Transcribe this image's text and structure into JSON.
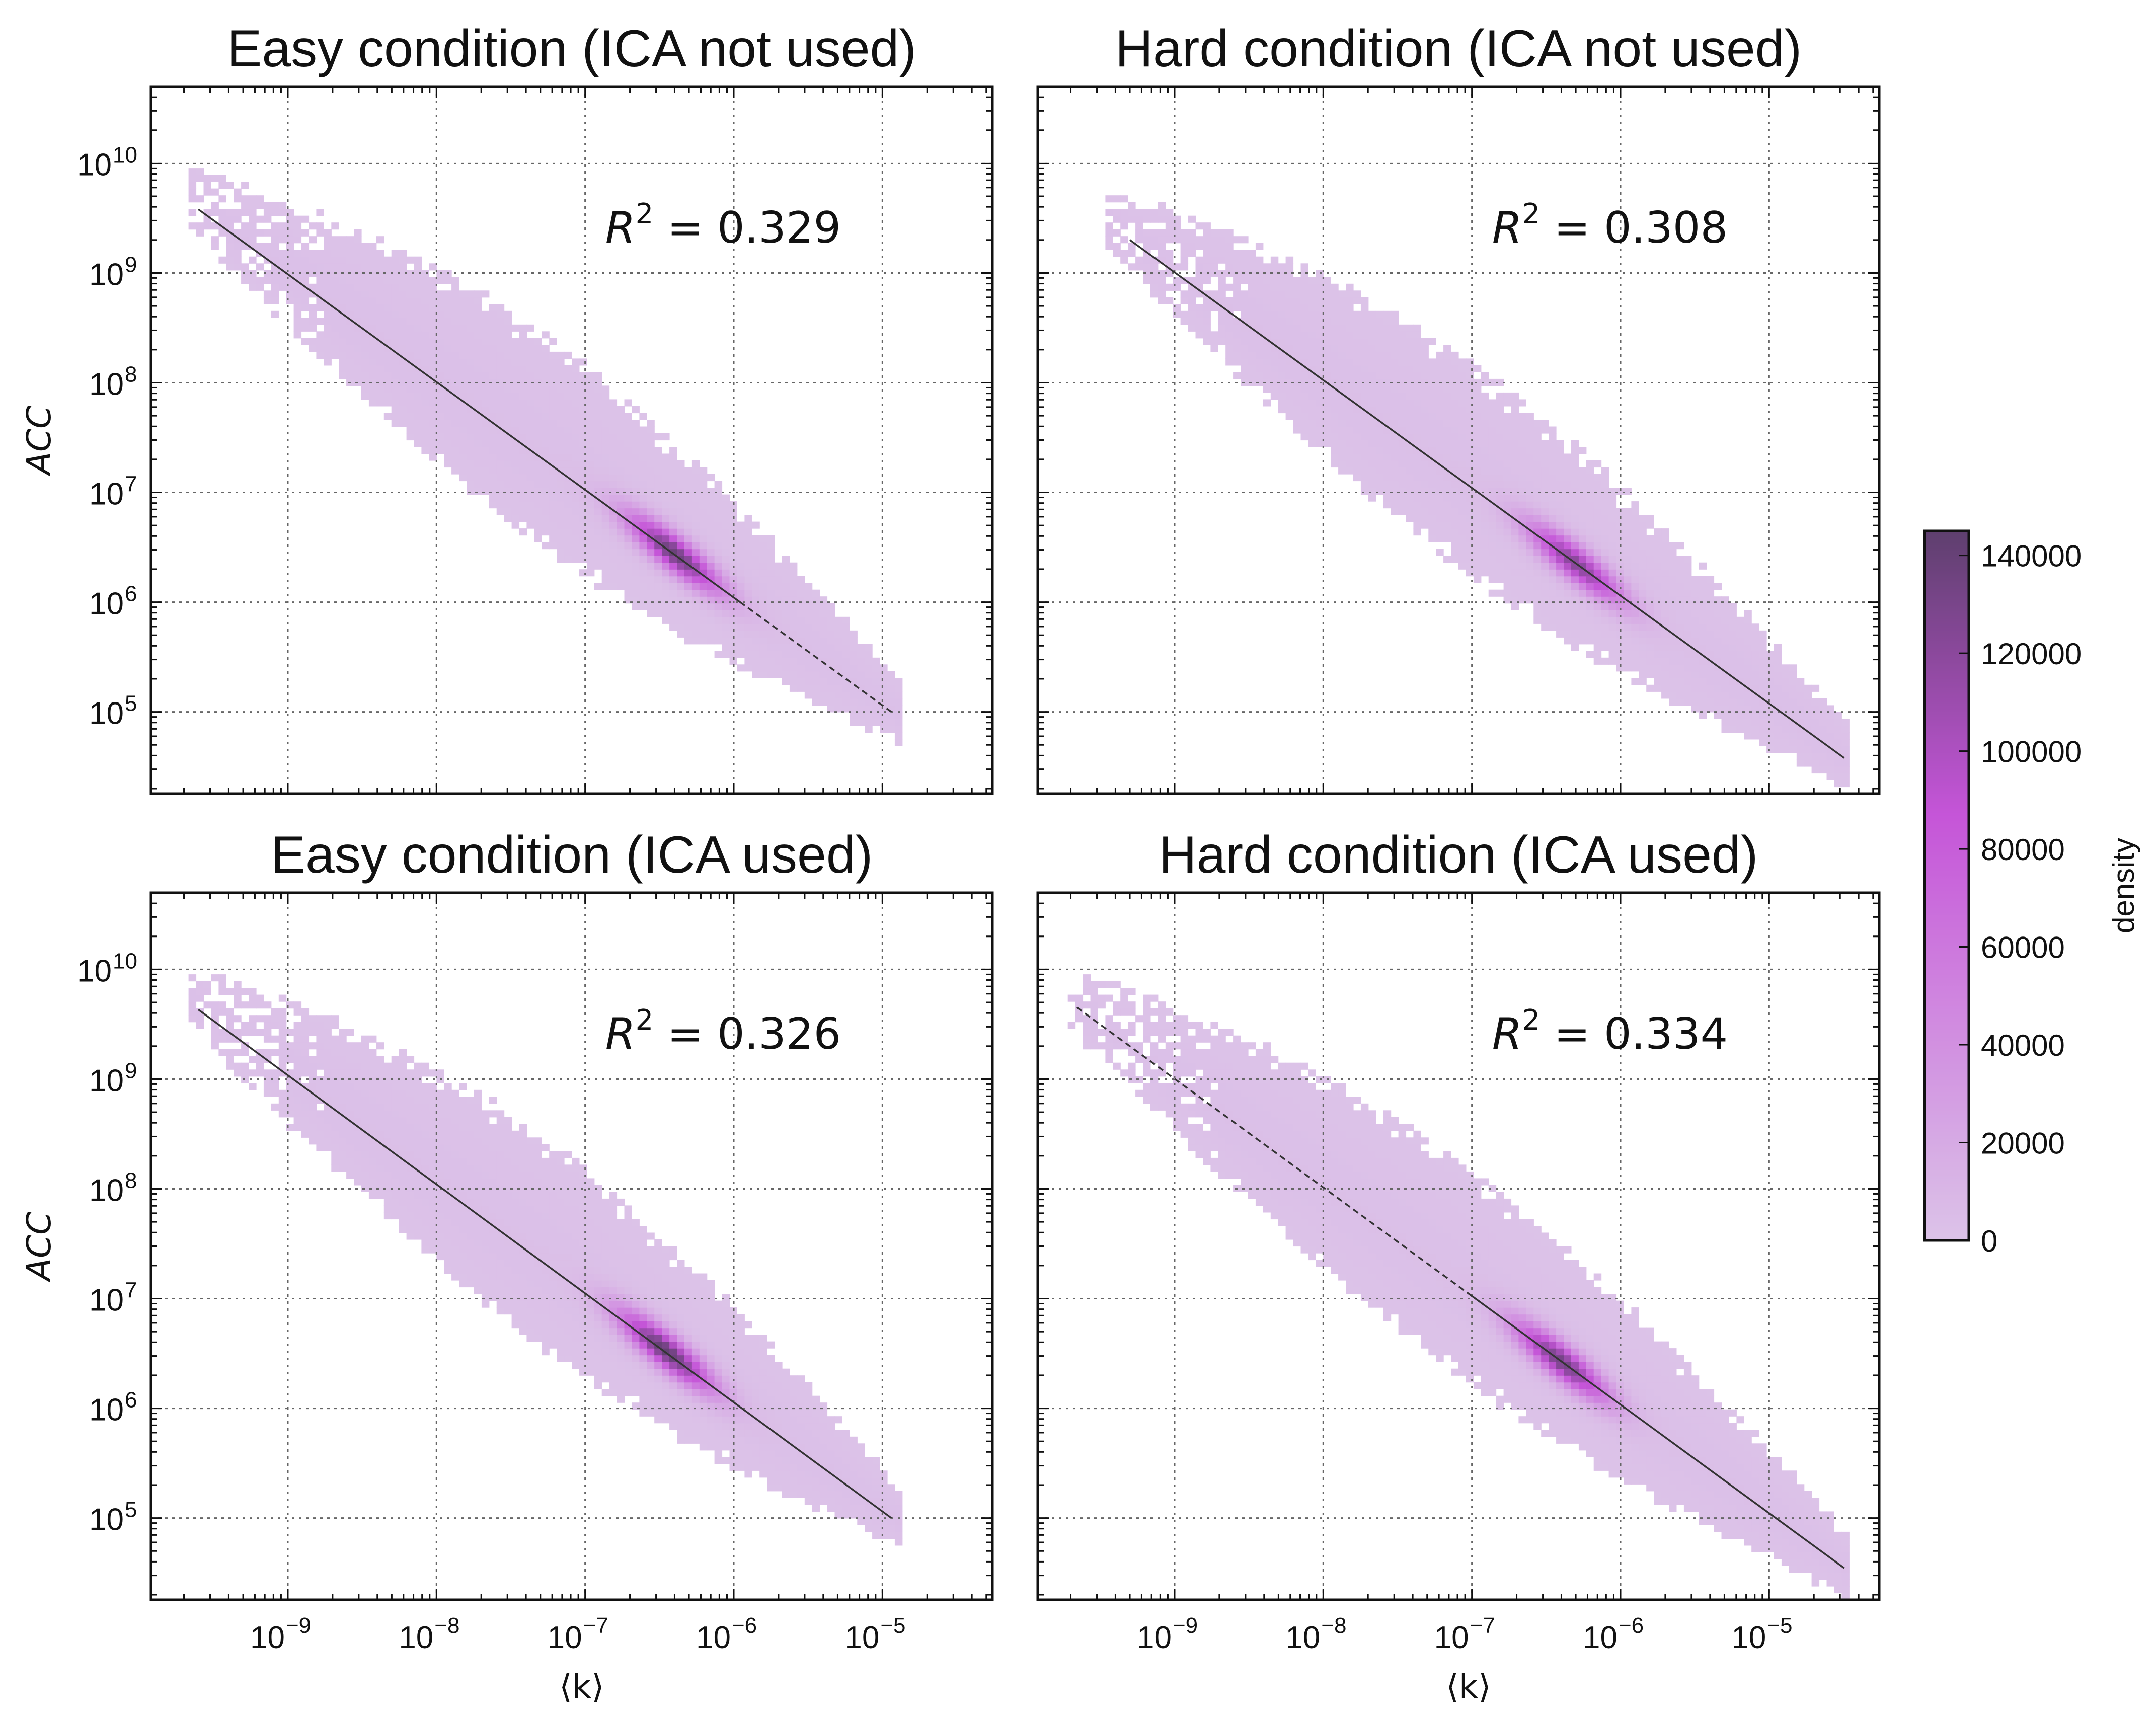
{
  "chart_data": [
    {
      "type": "heatmap",
      "title": "Easy condition (ICA not used)",
      "xlabel": "",
      "ylabel": "ACC",
      "xscale": "log",
      "yscale": "log",
      "xlim": [
        1.2e-10,
        5.5e-05
      ],
      "ylim": [
        18000.0,
        50000000000.0
      ],
      "x_tick_values": [
        1e-09,
        1e-08,
        1e-07,
        1e-06,
        1e-05
      ],
      "x_tick_labels": [
        "",
        "",
        "",
        "",
        ""
      ],
      "y_tick_values": [
        100000.0,
        1000000.0,
        10000000.0,
        100000000.0,
        1000000000.0,
        10000000000.0
      ],
      "y_tick_labels": [
        "10",
        "10",
        "10",
        "10",
        "10",
        "10"
      ],
      "y_tick_exponents": [
        "5",
        "6",
        "7",
        "8",
        "9",
        "10"
      ],
      "grid": true,
      "annotation": {
        "prefix": "R",
        "exponent": "2",
        "suffix": " = 0.329"
      },
      "fit_line": {
        "x": [
          2.5e-10,
          1.15e-05
        ],
        "y": [
          3800000000.0,
          100000.0
        ],
        "dashed_from_x": 1.1e-06
      },
      "density_ridge": {
        "x": [
          2.5e-10,
          1.2e-05
        ],
        "y": [
          3800000000.0,
          100000.0
        ],
        "peak_x": 4e-07,
        "peak_density": 135000
      }
    },
    {
      "type": "heatmap",
      "title": "Hard condition (ICA not used)",
      "xlabel": "",
      "ylabel": "",
      "xscale": "log",
      "yscale": "log",
      "xlim": [
        1.2e-10,
        5.5e-05
      ],
      "ylim": [
        18000.0,
        50000000000.0
      ],
      "x_tick_values": [
        1e-09,
        1e-08,
        1e-07,
        1e-06,
        1e-05
      ],
      "x_tick_labels": [
        "",
        "",
        "",
        "",
        ""
      ],
      "y_tick_values": [
        100000.0,
        1000000.0,
        10000000.0,
        100000000.0,
        1000000000.0,
        10000000000.0
      ],
      "y_tick_labels": [
        "",
        "",
        "",
        "",
        "",
        ""
      ],
      "grid": true,
      "annotation": {
        "prefix": "R",
        "exponent": "2",
        "suffix": " = 0.308"
      },
      "fit_line": {
        "x": [
          5e-10,
          3.2e-05
        ],
        "y": [
          2000000000.0,
          38000.0
        ],
        "dashed_from_x": null
      },
      "density_ridge": {
        "x": [
          4e-10,
          3.2e-05
        ],
        "y": [
          2500000000.0,
          38000.0
        ],
        "peak_x": 5e-07,
        "peak_density": 120000
      }
    },
    {
      "type": "heatmap",
      "title": "Easy condition (ICA used)",
      "xlabel": "⟨k⟩",
      "ylabel": "ACC",
      "xscale": "log",
      "yscale": "log",
      "xlim": [
        1.2e-10,
        5.5e-05
      ],
      "ylim": [
        18000.0,
        50000000000.0
      ],
      "x_tick_values": [
        1e-09,
        1e-08,
        1e-07,
        1e-06,
        1e-05
      ],
      "x_tick_labels": [
        "10",
        "10",
        "10",
        "10",
        "10"
      ],
      "x_tick_exponents": [
        "−9",
        "−8",
        "−7",
        "−6",
        "−5"
      ],
      "y_tick_values": [
        100000.0,
        1000000.0,
        10000000.0,
        100000000.0,
        1000000000.0,
        10000000000.0
      ],
      "y_tick_labels": [
        "10",
        "10",
        "10",
        "10",
        "10",
        "10"
      ],
      "y_tick_exponents": [
        "5",
        "6",
        "7",
        "8",
        "9",
        "10"
      ],
      "grid": true,
      "annotation": {
        "prefix": "R",
        "exponent": "2",
        "suffix": " = 0.326"
      },
      "fit_line": {
        "x": [
          2.5e-10,
          1.15e-05
        ],
        "y": [
          4300000000.0,
          100000.0
        ],
        "dashed_from_x": null
      },
      "density_ridge": {
        "x": [
          2.5e-10,
          1.2e-05
        ],
        "y": [
          4500000000.0,
          100000.0
        ],
        "peak_x": 3.5e-07,
        "peak_density": 140000
      }
    },
    {
      "type": "heatmap",
      "title": "Hard condition (ICA used)",
      "xlabel": "⟨k⟩",
      "ylabel": "",
      "xscale": "log",
      "yscale": "log",
      "xlim": [
        1.2e-10,
        5.5e-05
      ],
      "ylim": [
        18000.0,
        50000000000.0
      ],
      "x_tick_values": [
        1e-09,
        1e-08,
        1e-07,
        1e-06,
        1e-05
      ],
      "x_tick_labels": [
        "10",
        "10",
        "10",
        "10",
        "10"
      ],
      "x_tick_exponents": [
        "−9",
        "−8",
        "−7",
        "−6",
        "−5"
      ],
      "y_tick_values": [
        100000.0,
        1000000.0,
        10000000.0,
        100000000.0,
        1000000000.0,
        10000000000.0
      ],
      "y_tick_labels": [
        "",
        "",
        "",
        "",
        "",
        ""
      ],
      "grid": true,
      "annotation": {
        "prefix": "R",
        "exponent": "2",
        "suffix": " = 0.334"
      },
      "fit_line": {
        "x": [
          2.2e-10,
          3.2e-05
        ],
        "y": [
          4500000000.0,
          35000.0
        ],
        "dashed_from_x": null,
        "dashed_until_x": 1e-07
      },
      "density_ridge": {
        "x": [
          2.2e-10,
          3.2e-05
        ],
        "y": [
          4500000000.0,
          35000.0
        ],
        "peak_x": 4e-07,
        "peak_density": 130000
      }
    }
  ],
  "colorbar": {
    "label": "density",
    "min": 0,
    "max": 145000,
    "ticks": [
      0,
      20000,
      40000,
      60000,
      80000,
      100000,
      120000,
      140000
    ],
    "tick_labels": [
      "0",
      "20000",
      "40000",
      "60000",
      "80000",
      "100000",
      "120000",
      "140000"
    ],
    "color_low": "#dcc3e8",
    "color_mid": "#c555d8",
    "color_high": "#5e3f6e"
  },
  "colors": {
    "cell_light": "#dcc3e8",
    "fit_line": "#333333",
    "grid": "#666666"
  }
}
